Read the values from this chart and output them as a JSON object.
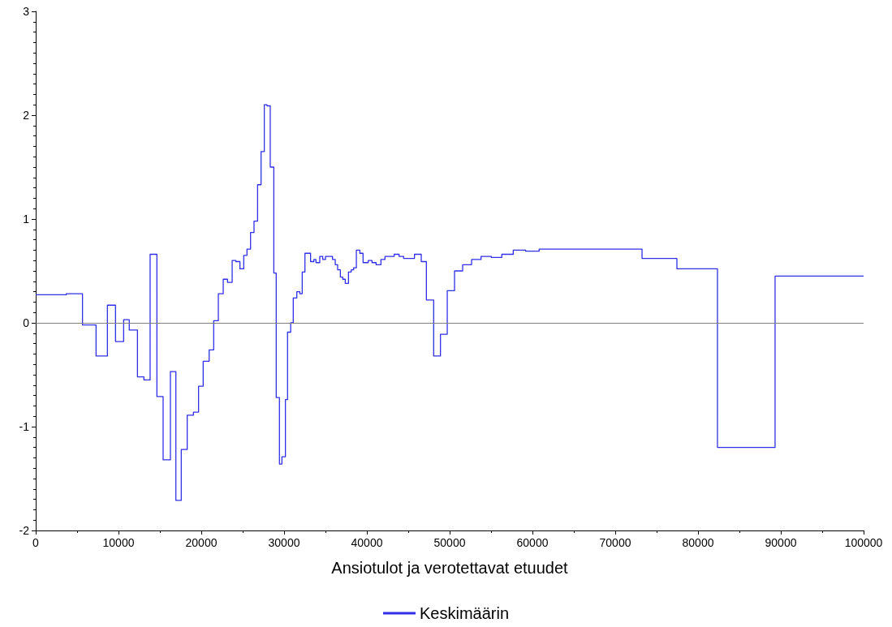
{
  "chart_data": {
    "type": "step",
    "xlabel": "Ansiotulot ja verotettavat etuudet",
    "x": [
      0,
      3700,
      5650,
      7290,
      8660,
      9640,
      10620,
      11300,
      12290,
      13070,
      13820,
      14640,
      15390,
      16270,
      16930,
      17580,
      18300,
      19050,
      19670,
      20230,
      20950,
      21500,
      22060,
      22650,
      23170,
      23730,
      24180,
      24670,
      25130,
      25520,
      25950,
      26370,
      26800,
      27220,
      27610,
      27940,
      28330,
      28760,
      29050,
      29440,
      29740,
      30160,
      30420,
      30800,
      31110,
      31540,
      31900,
      32190,
      32520,
      33200,
      33600,
      33850,
      34310,
      34670,
      35000,
      35850,
      36180,
      36470,
      36800,
      37090,
      37390,
      37780,
      38110,
      38400,
      38730,
      39150,
      39540,
      40170,
      40620,
      41110,
      41700,
      42190,
      43300,
      43890,
      44440,
      45750,
      46570,
      47190,
      48070,
      48890,
      49710,
      50590,
      51570,
      52650,
      53790,
      55030,
      56300,
      57680,
      59180,
      60810,
      73240,
      77450,
      82350,
      89310,
      100000
    ],
    "series": [
      {
        "name": "Keskimäärin",
        "color": "#3030e8",
        "values": [
          0.27,
          0.28,
          -0.02,
          -0.32,
          0.17,
          -0.18,
          0.03,
          -0.07,
          -0.52,
          -0.55,
          0.66,
          -0.71,
          -1.32,
          -0.47,
          -1.71,
          -1.22,
          -0.89,
          -0.86,
          -0.61,
          -0.37,
          -0.26,
          0.02,
          0.28,
          0.42,
          0.39,
          0.6,
          0.59,
          0.52,
          0.65,
          0.71,
          0.87,
          0.98,
          1.33,
          1.65,
          2.1,
          2.09,
          1.5,
          0.48,
          -0.72,
          -1.36,
          -1.29,
          -0.74,
          -0.09,
          0.0,
          0.24,
          0.3,
          0.28,
          0.49,
          0.67,
          0.59,
          0.61,
          0.58,
          0.64,
          0.61,
          0.64,
          0.61,
          0.56,
          0.51,
          0.44,
          0.42,
          0.38,
          0.49,
          0.51,
          0.53,
          0.7,
          0.67,
          0.58,
          0.6,
          0.58,
          0.56,
          0.61,
          0.64,
          0.66,
          0.64,
          0.62,
          0.66,
          0.59,
          0.22,
          -0.32,
          -0.11,
          0.31,
          0.5,
          0.56,
          0.61,
          0.64,
          0.63,
          0.66,
          0.7,
          0.69,
          0.71,
          0.62,
          0.52,
          -1.2,
          0.45,
          0.45
        ]
      }
    ],
    "xlim": [
      0,
      100000
    ],
    "xticks": [
      0,
      10000,
      20000,
      30000,
      40000,
      50000,
      60000,
      70000,
      80000,
      90000,
      100000
    ],
    "ylim": [
      -2,
      3
    ],
    "yticks": [
      -2,
      -1,
      0,
      1,
      2,
      3
    ],
    "ref_lines": [
      {
        "axis": "y",
        "value": 0,
        "color": "#808080"
      }
    ],
    "grid": false,
    "legend": "bottom",
    "marker": "none",
    "line_style": "solid"
  }
}
